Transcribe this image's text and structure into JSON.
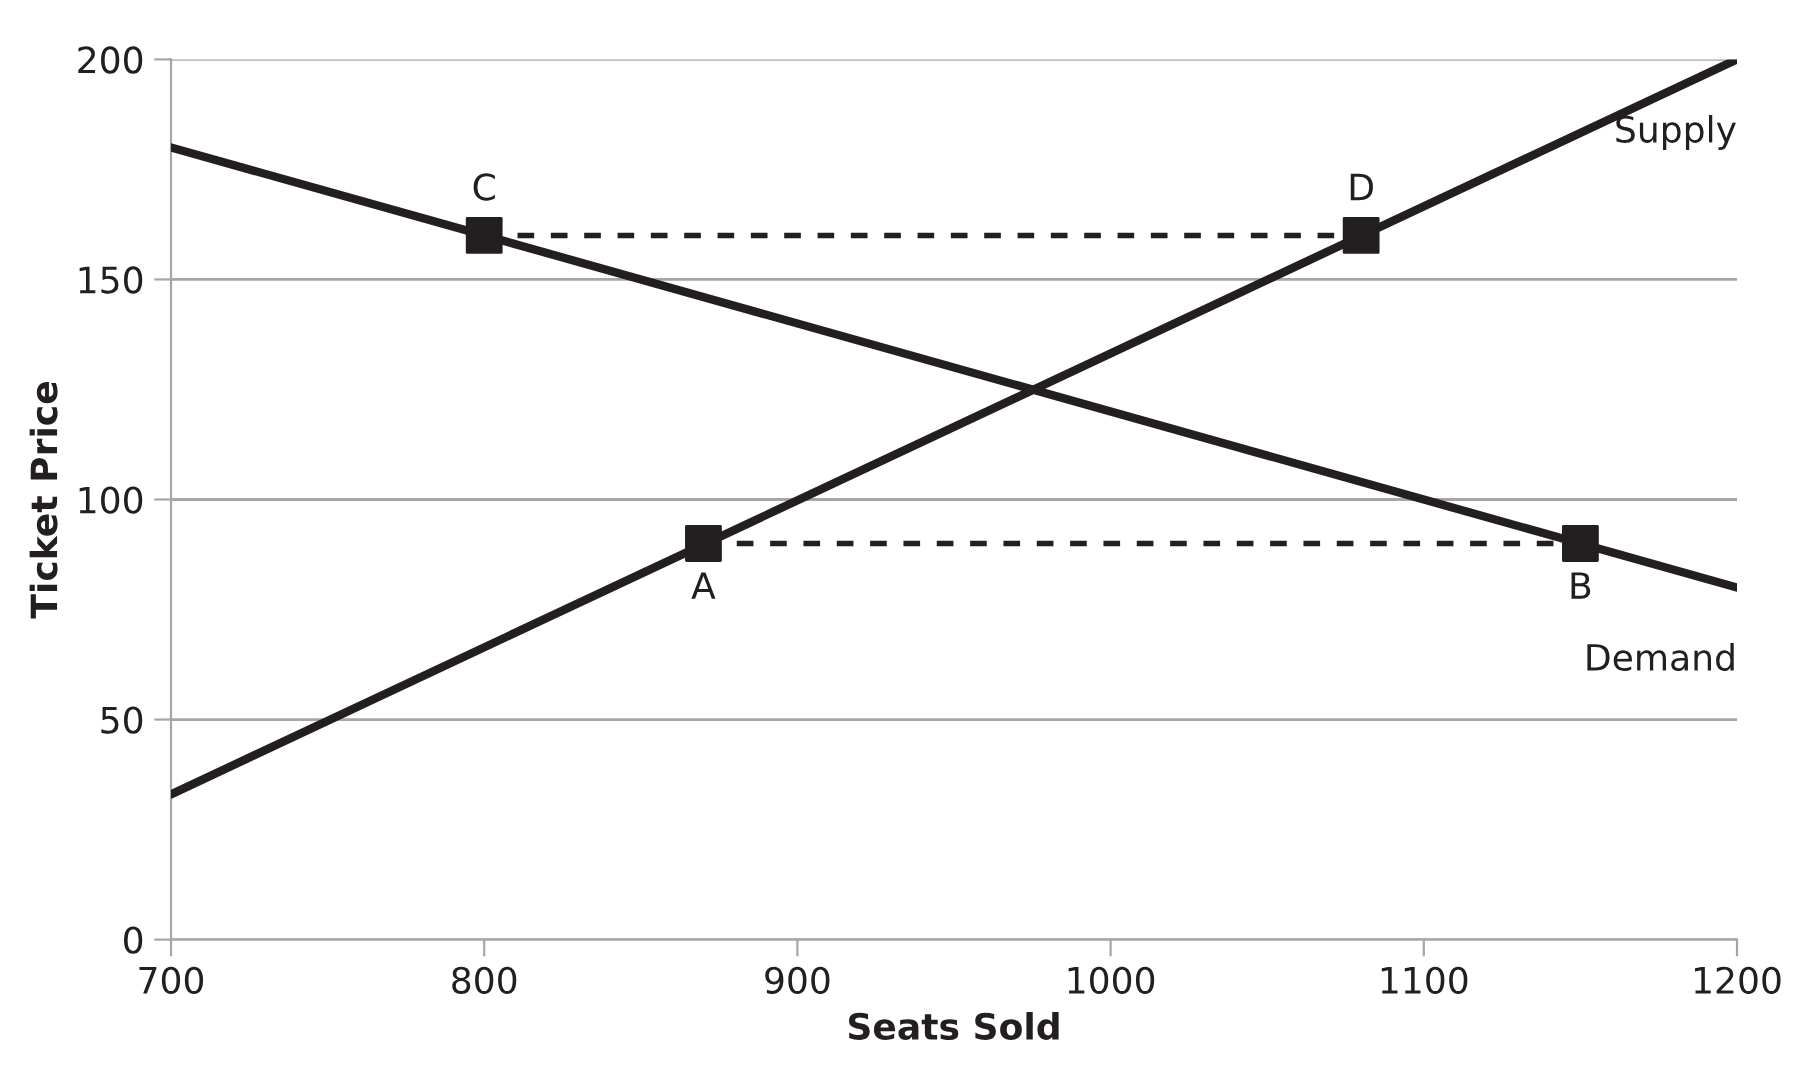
{
  "chart_data": {
    "type": "line",
    "xlabel": "Seats Sold",
    "ylabel": "Ticket Price",
    "xlim": [
      700,
      1200
    ],
    "xticks": [
      700,
      800,
      900,
      1000,
      1100,
      1200
    ],
    "ylim": [
      0,
      200
    ],
    "yticks": [
      0,
      50,
      100,
      150,
      200
    ],
    "grid": "y",
    "marker": "none",
    "series": [
      {
        "name": "Supply",
        "color": "#231f20",
        "x": [
          700,
          1200
        ],
        "values": [
          33,
          200
        ]
      },
      {
        "name": "Demand",
        "color": "#231f20",
        "x": [
          700,
          1200
        ],
        "values": [
          180,
          80
        ]
      },
      {
        "type": "line",
        "line_style": "dashed",
        "color": "#231f20",
        "x": [
          870,
          1150
        ],
        "values": [
          90,
          90
        ]
      },
      {
        "type": "line",
        "line_style": "dashed",
        "color": "#231f20",
        "x": [
          800,
          1080
        ],
        "values": [
          160,
          160
        ]
      },
      {
        "type": "scatter",
        "marker": "square",
        "color": "#231f20",
        "x": [
          870,
          1150,
          800,
          1080
        ],
        "values": [
          90,
          90,
          160,
          160
        ]
      }
    ],
    "annotations": [
      {
        "text": "A",
        "x": 870,
        "y": 90
      },
      {
        "text": "B",
        "x": 1150,
        "y": 90
      },
      {
        "text": "C",
        "x": 800,
        "y": 160
      },
      {
        "text": "D",
        "x": 1080,
        "y": 160
      }
    ]
  }
}
